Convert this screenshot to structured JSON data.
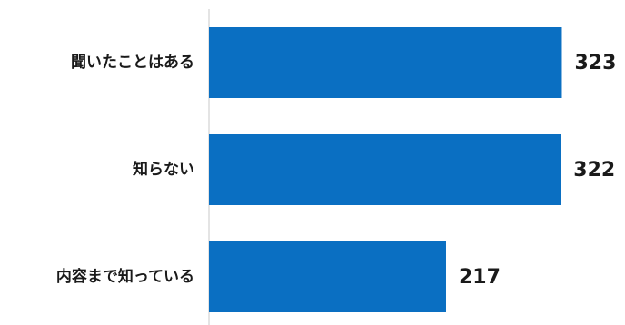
{
  "chart_data": {
    "type": "bar",
    "orientation": "horizontal",
    "categories": [
      "聞いたことはある",
      "知らない",
      "内容まで知っている"
    ],
    "values": [
      323,
      322,
      217
    ],
    "xlim": [
      0,
      370
    ],
    "grid": false,
    "legend": "none",
    "bar_color": "#0a6fc2",
    "axis_color": "#c8c8c8"
  }
}
